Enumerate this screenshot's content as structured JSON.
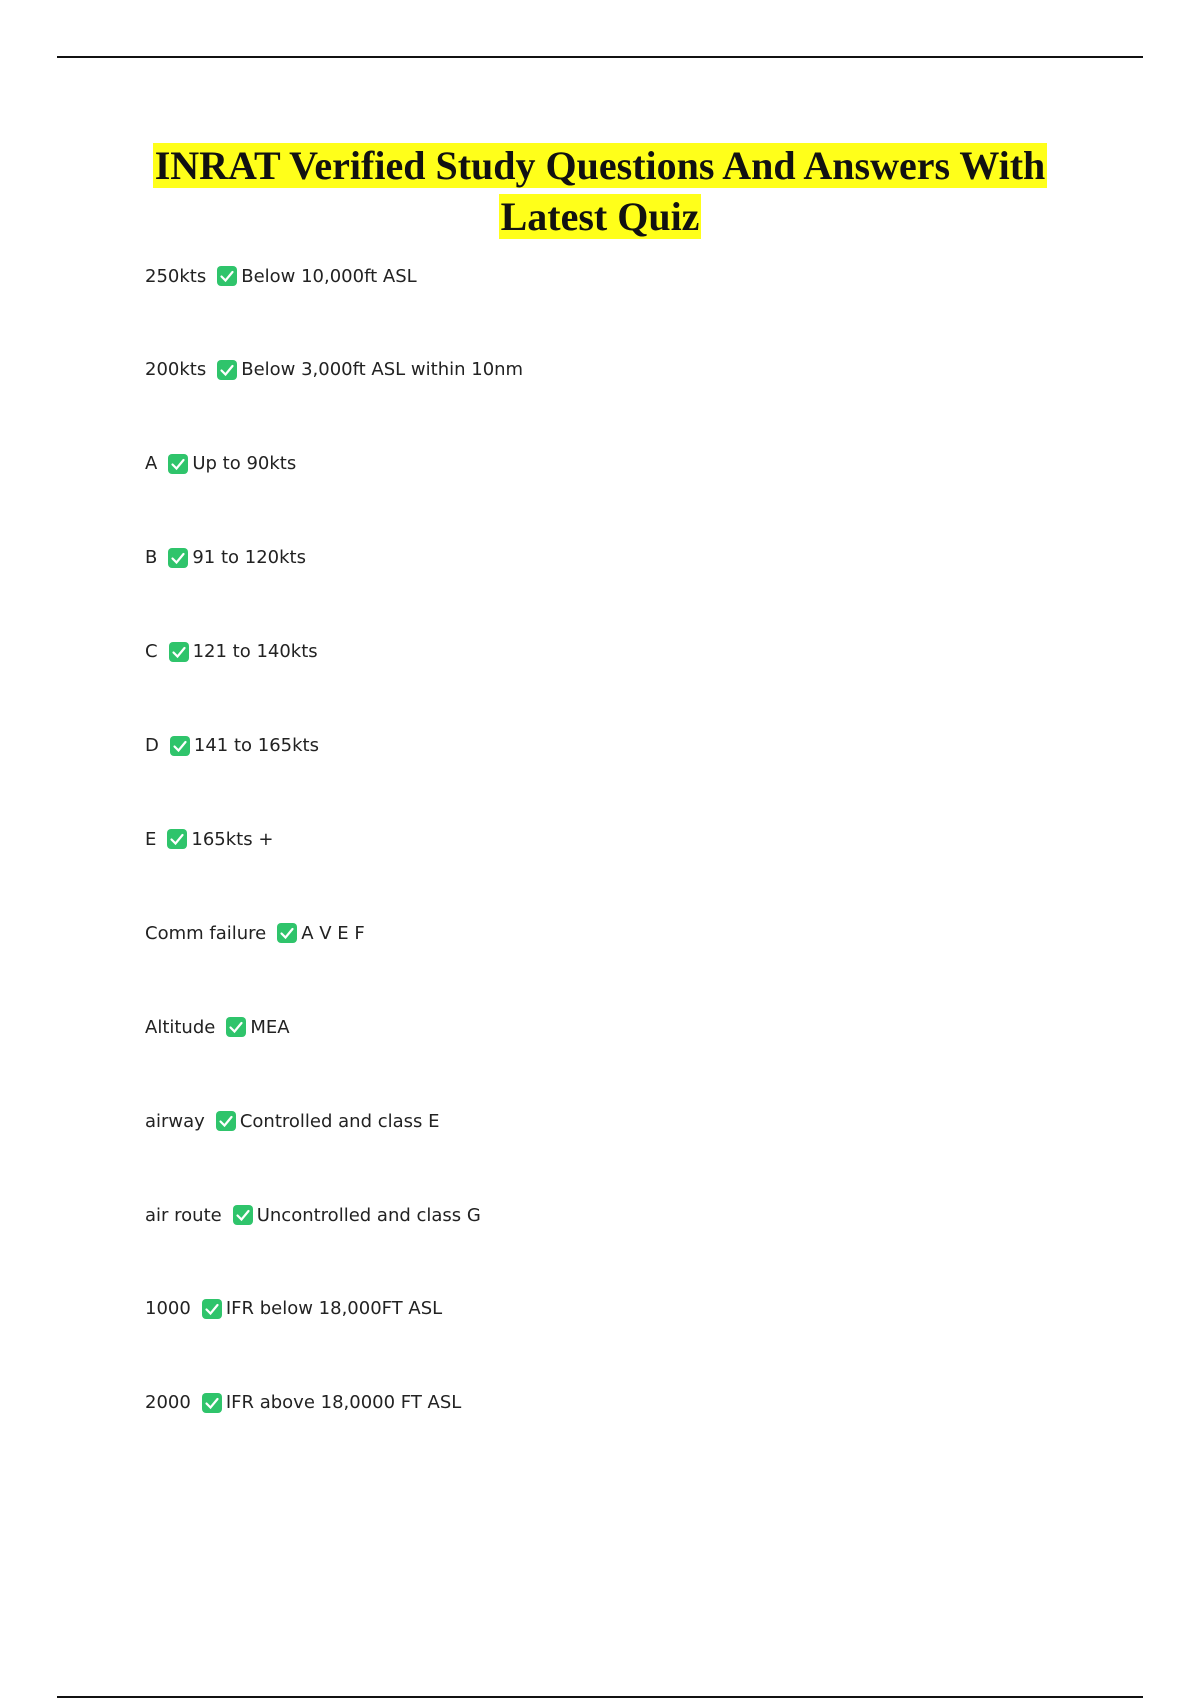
{
  "header": {
    "title": "INRAT Verified Study Questions And Answers With Latest Quiz"
  },
  "items": [
    {
      "question": "250kts",
      "answer": "Below 10,000ft ASL"
    },
    {
      "question": "200kts",
      "answer": "Below 3,000ft ASL within 10nm"
    },
    {
      "question": "A",
      "answer": "Up to 90kts"
    },
    {
      "question": "B",
      "answer": "91 to 120kts"
    },
    {
      "question": "C",
      "answer": "121 to 140kts"
    },
    {
      "question": "D",
      "answer": "141 to 165kts"
    },
    {
      "question": "E",
      "answer": "165kts +"
    },
    {
      "question": "Comm failure",
      "answer": "A V E F"
    },
    {
      "question": "Altitude",
      "answer": "MEA"
    },
    {
      "question": "airway",
      "answer": "Controlled and class E"
    },
    {
      "question": "air route",
      "answer": "Uncontrolled and class G"
    },
    {
      "question": "1000",
      "answer": "IFR below 18,000FT ASL"
    },
    {
      "question": "2000",
      "answer": "IFR above 18,0000 FT ASL"
    }
  ]
}
